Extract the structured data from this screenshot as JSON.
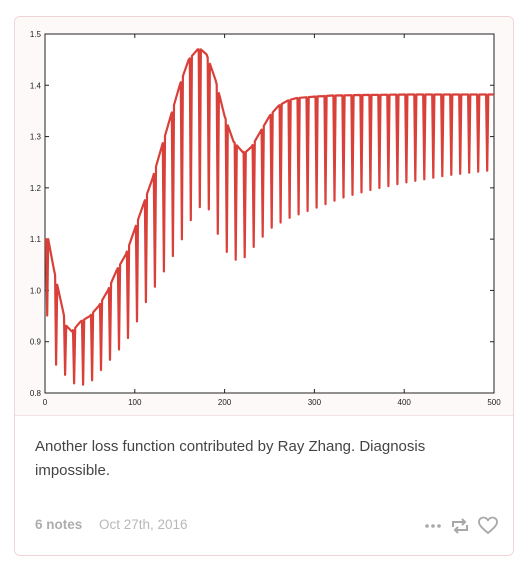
{
  "post": {
    "caption": "Another loss function contributed by Ray Zhang. Diagnosis impossible.",
    "notes": "6 notes",
    "date": "Oct 27th, 2016"
  },
  "icons": {
    "more": "more-dots-icon",
    "reblog": "reblog-icon",
    "like": "heart-icon"
  },
  "colors": {
    "line": "#d9403a",
    "border": "#f0d4d6",
    "text": "#444444",
    "meta": "#b6b6b6"
  },
  "chart_data": {
    "type": "line",
    "title": "",
    "xlabel": "",
    "ylabel": "",
    "xlim": [
      0,
      500
    ],
    "ylim": [
      0.8,
      1.5
    ],
    "xticks": [
      "0",
      "100",
      "200",
      "300",
      "400",
      "500"
    ],
    "yticks": [
      "0.8",
      "0.9",
      "1.0",
      "1.1",
      "1.2",
      "1.3",
      "1.4",
      "1.5"
    ],
    "grid": false,
    "series": [
      {
        "upper_envelope": {
          "x": [
            0,
            5,
            10,
            15,
            20,
            25,
            30,
            40,
            50,
            60,
            70,
            80,
            90,
            100,
            110,
            120,
            130,
            140,
            150,
            160,
            170,
            175,
            180,
            190,
            200,
            210,
            220,
            225,
            230,
            240,
            250,
            260,
            270,
            280,
            300,
            320,
            350,
            400,
            450,
            500
          ],
          "y": [
            1.1,
            1.1,
            1.04,
            1.0,
            0.96,
            0.92,
            0.92,
            0.94,
            0.95,
            0.97,
            1.0,
            1.04,
            1.07,
            1.12,
            1.17,
            1.22,
            1.28,
            1.34,
            1.4,
            1.45,
            1.47,
            1.47,
            1.46,
            1.41,
            1.34,
            1.29,
            1.27,
            1.27,
            1.28,
            1.31,
            1.34,
            1.36,
            1.37,
            1.375,
            1.378,
            1.38,
            1.381,
            1.382,
            1.382,
            1.382
          ]
        },
        "lower_envelope": {
          "x": [
            0,
            10,
            20,
            30,
            40,
            50,
            60,
            70,
            80,
            90,
            100,
            110,
            120,
            130,
            140,
            150,
            160,
            170,
            180,
            190,
            200,
            210,
            220,
            230,
            240,
            250,
            270,
            300,
            330,
            360,
            400,
            450,
            500
          ],
          "y": [
            0.98,
            0.86,
            0.84,
            0.82,
            0.815,
            0.82,
            0.84,
            0.86,
            0.88,
            0.9,
            0.93,
            0.97,
            1.0,
            1.03,
            1.06,
            1.09,
            1.13,
            1.16,
            1.17,
            1.12,
            1.08,
            1.06,
            1.06,
            1.08,
            1.1,
            1.12,
            1.14,
            1.16,
            1.18,
            1.195,
            1.21,
            1.225,
            1.235
          ]
        }
      }
    ]
  }
}
